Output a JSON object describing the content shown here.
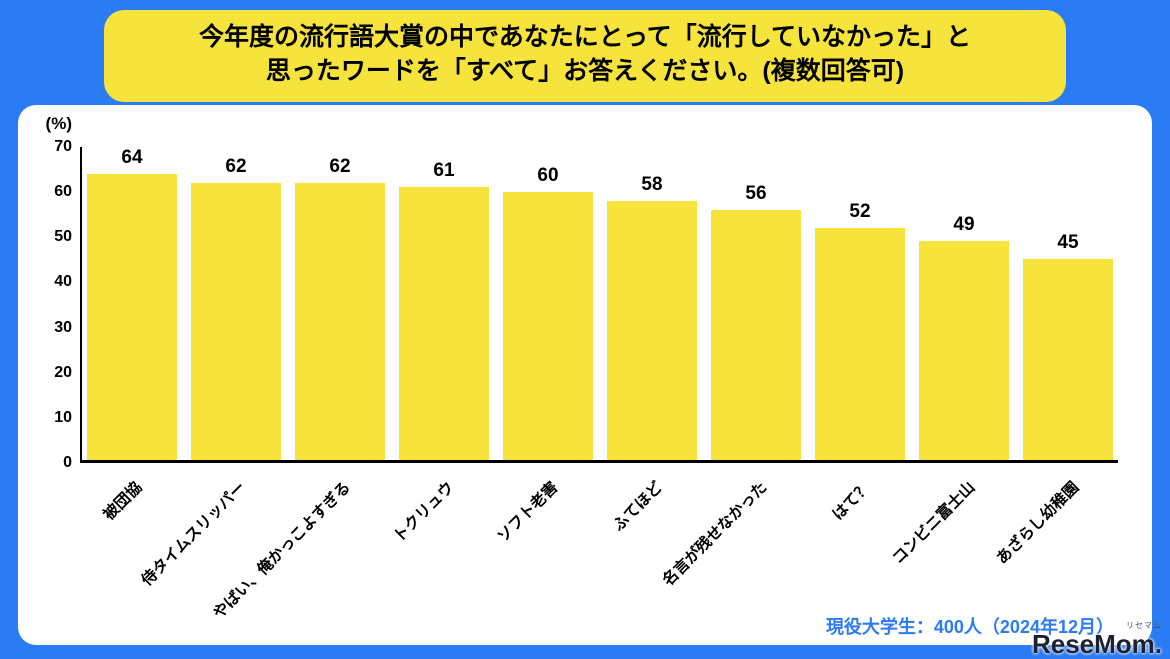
{
  "header": {
    "title_line1": "今年度の流行語大賞の中であなたにとって「流行していなかった」と",
    "title_line2": "思ったワードを「すべて」お答えください。(複数回答可)"
  },
  "chart_data": {
    "type": "bar",
    "categories": [
      "被団協",
      "侍タイムスリッパー",
      "やばい、俺かっこよすぎる",
      "トクリュウ",
      "ソフト老害",
      "ふてほど",
      "名言が残せなかった",
      "はて？",
      "コンビニ富士山",
      "あざらし幼稚園"
    ],
    "values": [
      64,
      62,
      62,
      61,
      60,
      58,
      56,
      52,
      49,
      45
    ],
    "title": "",
    "xlabel": "",
    "ylabel": "(%)",
    "ylim": [
      0,
      70
    ],
    "yticks": [
      70,
      60,
      50,
      40,
      30,
      20,
      10,
      0
    ],
    "grid": false,
    "legend": false,
    "bar_color": "#F6E33B"
  },
  "footnote": "現役大学生：400人（2024年12月）",
  "watermark": {
    "ruby": "リセマム",
    "text": "ReseMom."
  },
  "colors": {
    "background": "#2B7BF4",
    "accent_yellow": "#F6E33B",
    "card": "#FFFFFF",
    "footnote_blue": "#2B7BF4",
    "axis": "#000000"
  }
}
